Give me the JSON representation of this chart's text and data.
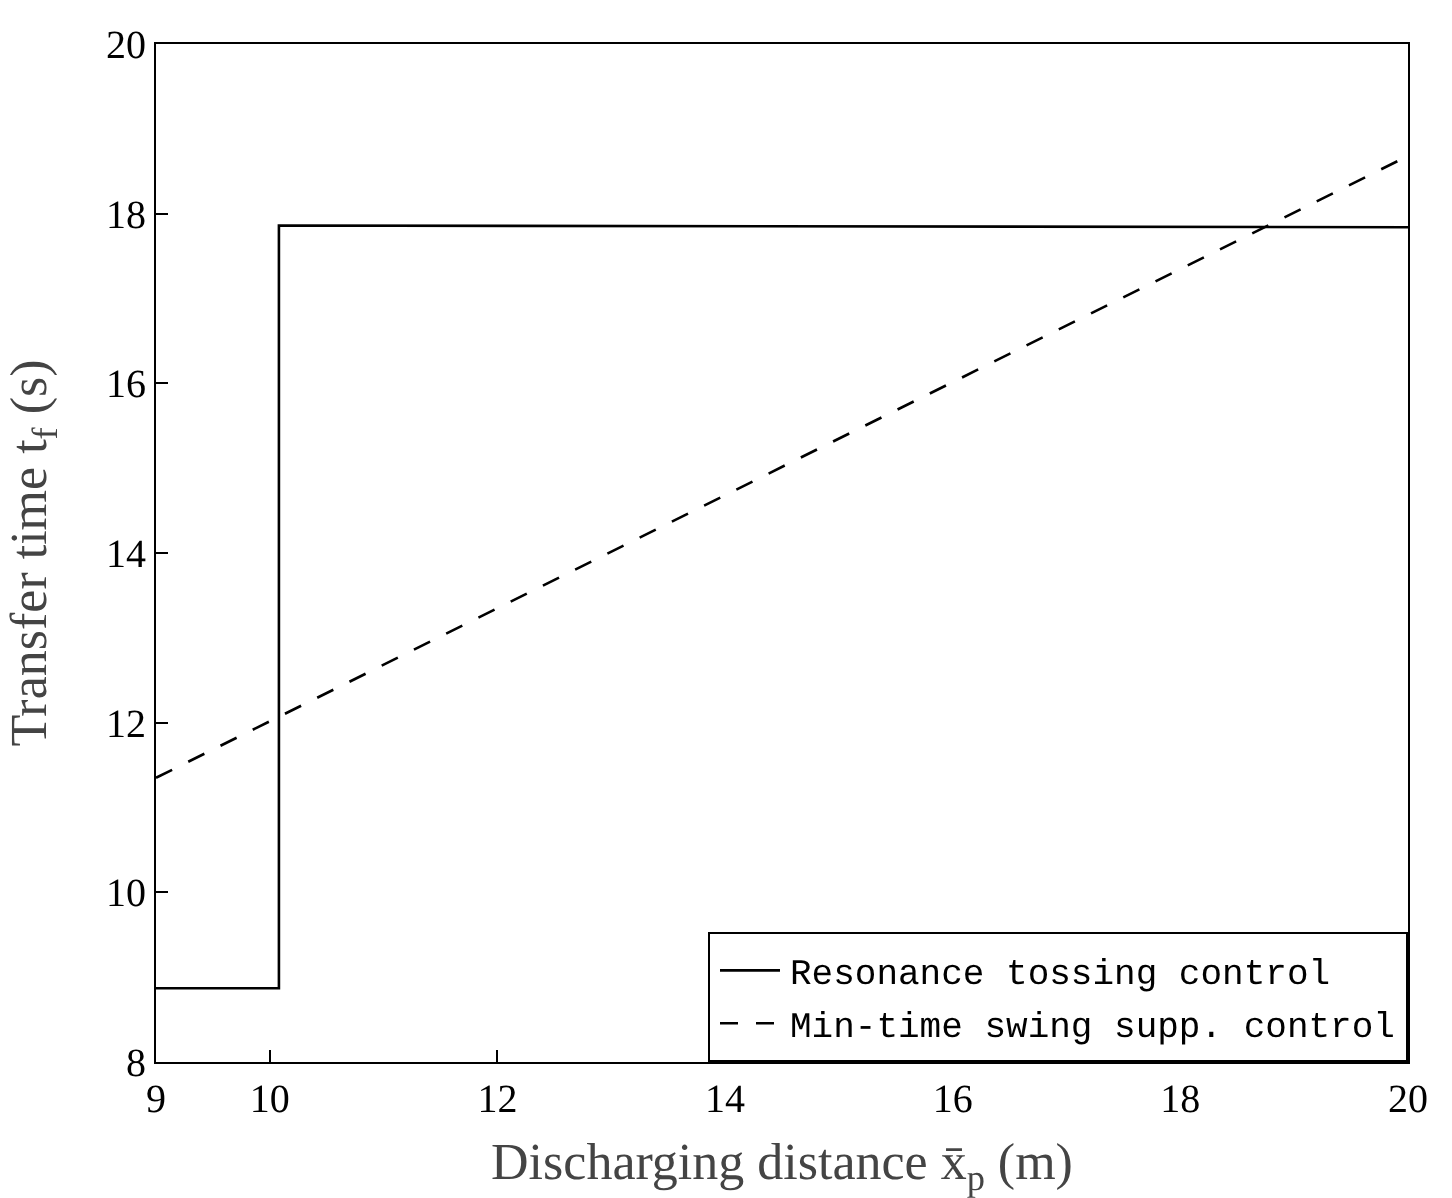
{
  "chart_data": {
    "type": "line",
    "xlabel": "Discharging distance x̄$_{p}$ (m)",
    "ylabel": "Transfer time t$_{f}$ (s)",
    "xlim": [
      9,
      20
    ],
    "xticks": [
      9,
      10,
      12,
      14,
      16,
      18,
      20
    ],
    "ylim": [
      8,
      20
    ],
    "yticks": [
      8,
      10,
      12,
      14,
      16,
      18,
      20
    ],
    "grid": false,
    "legend": "bottom right",
    "marker": "none",
    "series": [
      {
        "name": "Resonance tossing control",
        "color": "#000000",
        "line_style": "solid",
        "x": [
          9,
          10.08,
          10.08,
          20
        ],
        "values": [
          8.87,
          8.87,
          17.86,
          17.84
        ]
      },
      {
        "name": "Min-time swing supp. control",
        "color": "#000000",
        "line_style": "dashed",
        "x": [
          9,
          20
        ],
        "values": [
          11.35,
          18.68
        ]
      }
    ]
  }
}
